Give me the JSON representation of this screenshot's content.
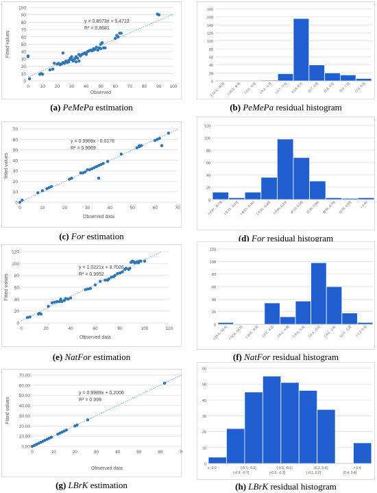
{
  "colors": {
    "point": "#2e75b6",
    "bar": "#1f5fd0",
    "bar_edge": "#ffffff",
    "trend": "#5b9bd5",
    "grid": "#d9d9d9",
    "axis_text": "#595959"
  },
  "captions": [
    {
      "label": "(a)",
      "name": "PeMePa",
      "suffix": " estimation"
    },
    {
      "label": "(b)",
      "name": "PeMePa",
      "suffix": " residual histogram"
    },
    {
      "label": "(c)",
      "name": "For",
      "suffix": " estimation"
    },
    {
      "label": "(d)",
      "name": "For",
      "suffix": " residual histogram"
    },
    {
      "label": "(e)",
      "name": "NatFor",
      "suffix": " estimation"
    },
    {
      "label": "(f)",
      "name": "NatFor",
      "suffix": " residual histogram"
    },
    {
      "label": "(g)",
      "name": "LBrK",
      "suffix": " estimation"
    },
    {
      "label": "(h)",
      "name": "LBrK",
      "suffix": " residual histogram"
    }
  ],
  "chart_data": [
    {
      "type": "scatter",
      "xlabel": "Observed",
      "ylabel": "Fitted values",
      "equation": "y = 0.8573x + 5.4712",
      "r2": "R² = 0.8681",
      "xlim": [
        0,
        100
      ],
      "ylim": [
        0,
        100
      ],
      "xticks": [
        "0",
        "10",
        "20",
        "30",
        "40",
        "50",
        "60",
        "70",
        "80",
        "90",
        "100"
      ],
      "yticks": [
        "0",
        "10",
        "20",
        "30",
        "40",
        "50",
        "60",
        "70",
        "80",
        "90",
        "100"
      ],
      "trend": {
        "slope": 0.8573,
        "intercept": 5.4712
      },
      "points": [
        [
          0,
          33
        ],
        [
          0,
          34
        ],
        [
          1,
          3
        ],
        [
          8,
          9
        ],
        [
          9,
          10
        ],
        [
          10,
          9
        ],
        [
          15,
          15
        ],
        [
          17,
          16
        ],
        [
          18,
          24
        ],
        [
          20,
          23
        ],
        [
          21,
          24
        ],
        [
          22,
          22
        ],
        [
          23,
          23
        ],
        [
          24,
          25
        ],
        [
          24,
          38
        ],
        [
          25,
          24
        ],
        [
          26,
          27
        ],
        [
          27,
          25
        ],
        [
          28,
          26
        ],
        [
          28,
          28
        ],
        [
          29,
          31
        ],
        [
          30,
          29
        ],
        [
          30,
          33
        ],
        [
          31,
          27
        ],
        [
          32,
          30
        ],
        [
          33,
          26
        ],
        [
          33,
          33
        ],
        [
          34,
          31
        ],
        [
          35,
          36
        ],
        [
          35,
          27
        ],
        [
          36,
          34
        ],
        [
          37,
          36
        ],
        [
          38,
          37
        ],
        [
          39,
          38
        ],
        [
          40,
          36
        ],
        [
          40,
          38
        ],
        [
          41,
          40
        ],
        [
          42,
          41
        ],
        [
          43,
          42
        ],
        [
          44,
          41
        ],
        [
          45,
          44
        ],
        [
          45,
          42
        ],
        [
          46,
          43
        ],
        [
          47,
          46
        ],
        [
          48,
          42
        ],
        [
          49,
          45
        ],
        [
          50,
          50
        ],
        [
          50,
          44
        ],
        [
          51,
          52
        ],
        [
          52,
          45
        ],
        [
          53,
          45
        ],
        [
          60,
          58
        ],
        [
          61,
          62
        ],
        [
          62,
          60
        ],
        [
          63,
          65
        ],
        [
          64,
          65
        ],
        [
          89,
          91
        ],
        [
          90,
          90
        ]
      ]
    },
    {
      "type": "bar",
      "categories": [
        "(-12.3, -10.1]",
        "(-10.1, -8.0]",
        "(-8.0, -5.8]",
        "(-5.8, -3.7]",
        "(-3.7, -1.5]",
        "(-1.5, 0.7]",
        "(0.7, 2.8]",
        "(2.8, 5.0]",
        "(5.0, 7.2]",
        "(7.2, 9.3]"
      ],
      "values": [
        0,
        0,
        0,
        2,
        18,
        156,
        40,
        20,
        15,
        6
      ],
      "ylim": [
        0,
        180
      ],
      "yticks": [
        "0",
        "20",
        "40",
        "60",
        "80",
        "100",
        "120",
        "140",
        "160",
        "180"
      ]
    },
    {
      "type": "scatter",
      "xlabel": "Observed data",
      "ylabel": "fitted values",
      "equation": "y = 0.9969x - 0.0176",
      "r2": "R² = 0.9969",
      "xlim": [
        0,
        70
      ],
      "ylim": [
        0,
        70
      ],
      "xticks": [
        "0",
        "10",
        "20",
        "30",
        "40",
        "50",
        "60",
        "70"
      ],
      "yticks": [
        "0",
        "10",
        "20",
        "30",
        "40",
        "50",
        "60",
        "70"
      ],
      "trend": {
        "slope": 0.9969,
        "intercept": -0.0176
      },
      "points": [
        [
          0,
          0
        ],
        [
          1,
          2
        ],
        [
          8,
          9
        ],
        [
          10,
          11
        ],
        [
          12,
          13
        ],
        [
          13,
          14
        ],
        [
          14,
          15
        ],
        [
          22,
          22
        ],
        [
          23,
          23
        ],
        [
          27,
          28
        ],
        [
          28,
          28
        ],
        [
          29,
          29
        ],
        [
          30,
          31
        ],
        [
          31,
          31
        ],
        [
          32,
          32
        ],
        [
          33,
          33
        ],
        [
          34,
          34
        ],
        [
          35,
          23
        ],
        [
          35,
          35
        ],
        [
          36,
          36
        ],
        [
          37,
          37
        ],
        [
          39,
          39
        ],
        [
          45,
          46
        ],
        [
          52,
          52
        ],
        [
          53,
          53
        ],
        [
          53,
          54
        ],
        [
          54,
          54
        ],
        [
          60,
          59
        ],
        [
          61,
          60
        ],
        [
          62,
          61
        ],
        [
          63,
          54
        ],
        [
          66,
          66
        ]
      ]
    },
    {
      "type": "bar",
      "categories": [
        "(-0.97, -0.75]",
        "(-0.75, -0.53]",
        "(-0.53, -0.31]",
        "(-0.31, -0.09]",
        "(-0.09, 0.13]",
        "(0.13, 0.34]",
        "(0.34, 0.56]",
        "(0.56, 0.78]",
        "(0.78, 1.00]",
        "> 1.00"
      ],
      "values": [
        12,
        3,
        12,
        36,
        98,
        68,
        30,
        3,
        2,
        3
      ],
      "ylim": [
        0,
        120
      ],
      "yticks": [
        "0",
        "20",
        "40",
        "60",
        "80",
        "100",
        "120"
      ]
    },
    {
      "type": "scatter",
      "xlabel": "Observed data",
      "ylabel": "Fitted values",
      "equation": "y = 1.0221x + 3.7026",
      "r2": "R² = 0.9952",
      "xlim": [
        0,
        120
      ],
      "ylim": [
        0,
        120
      ],
      "xticks": [
        "0",
        "20",
        "40",
        "60",
        "80",
        "100",
        "120"
      ],
      "yticks": [
        "0",
        "20",
        "40",
        "60",
        "80",
        "100",
        "120"
      ],
      "trend": {
        "slope": 1.0221,
        "intercept": 3.7026
      },
      "points": [
        [
          5,
          9
        ],
        [
          7,
          10
        ],
        [
          14,
          15
        ],
        [
          15,
          16
        ],
        [
          16,
          15
        ],
        [
          22,
          28
        ],
        [
          25,
          34
        ],
        [
          27,
          35
        ],
        [
          29,
          36
        ],
        [
          31,
          36
        ],
        [
          32,
          40
        ],
        [
          33,
          36
        ],
        [
          35,
          38
        ],
        [
          36,
          41
        ],
        [
          38,
          40
        ],
        [
          40,
          42
        ],
        [
          52,
          56
        ],
        [
          54,
          57
        ],
        [
          56,
          58
        ],
        [
          60,
          64
        ],
        [
          64,
          70
        ],
        [
          68,
          72
        ],
        [
          70,
          72
        ],
        [
          71,
          74
        ],
        [
          73,
          77
        ],
        [
          75,
          78
        ],
        [
          76,
          80
        ],
        [
          78,
          83
        ],
        [
          80,
          84
        ],
        [
          82,
          86
        ],
        [
          84,
          90
        ],
        [
          85,
          92
        ],
        [
          87,
          90
        ],
        [
          88,
          92
        ],
        [
          89,
          102
        ],
        [
          90,
          104
        ],
        [
          91,
          103
        ],
        [
          92,
          101
        ],
        [
          93,
          102
        ],
        [
          94,
          103
        ],
        [
          95,
          101
        ],
        [
          96,
          104
        ],
        [
          97,
          104
        ],
        [
          100,
          104
        ]
      ]
    },
    {
      "type": "bar",
      "categories": [
        "(-13.8, -12.4]",
        "(-12.4, -11.0]",
        "(-11.0, -9.6]",
        "(-9.6, -8.2]",
        "(-8.2, -6.8]",
        "(-6.8, -5.4]",
        "(-5.4, -4.0]",
        "(-4.0, -2.6]",
        "(-2.6, -1.2]",
        "(-1.2, 0.3]"
      ],
      "values": [
        3,
        0,
        0,
        34,
        12,
        37,
        98,
        60,
        18,
        3
      ],
      "ylim": [
        0,
        120
      ],
      "yticks": [
        "0",
        "20",
        "40",
        "60",
        "80",
        "100",
        "120"
      ]
    },
    {
      "type": "scatter",
      "xlabel": "Observed data",
      "ylabel": "Fitted values",
      "equation": "y = 0.9989x + 0.2006",
      "r2": "R² = 0.999",
      "xlim": [
        0,
        70
      ],
      "ylim": [
        0,
        70
      ],
      "xticks": [
        "0",
        "10",
        "20",
        "30",
        "40",
        "50",
        "60",
        "70"
      ],
      "yticks": [
        "0.00",
        "10.00",
        "20.00",
        "30.00",
        "40.00",
        "50.00",
        "60.00",
        "70.00"
      ],
      "trend": {
        "slope": 0.9989,
        "intercept": 0.2006
      },
      "points": [
        [
          0,
          0
        ],
        [
          1,
          1
        ],
        [
          2,
          2
        ],
        [
          3,
          3
        ],
        [
          4,
          4
        ],
        [
          5,
          5
        ],
        [
          6,
          6
        ],
        [
          7,
          7
        ],
        [
          8,
          8
        ],
        [
          9,
          9
        ],
        [
          12,
          12
        ],
        [
          13,
          13
        ],
        [
          14,
          14
        ],
        [
          15,
          15
        ],
        [
          16,
          16
        ],
        [
          20,
          20
        ],
        [
          21,
          21
        ],
        [
          26,
          26
        ],
        [
          62,
          62
        ]
      ]
    },
    {
      "type": "bar",
      "categories": [
        "≤ -0.9",
        "(-0.9, -0.7]",
        "(-0.7, -0.5]",
        "(-0.5, -0.3]",
        "(-0.3, -0.1]",
        "(-0.1, 0.2]",
        "(0.2, 0.4]",
        "(0.4, 0.4]",
        "> 0.4"
      ],
      "values": [
        4,
        22,
        45,
        55,
        51,
        46,
        34,
        0,
        13
      ],
      "ylim": [
        0,
        60
      ],
      "yticks": [
        "0",
        "10",
        "20",
        "30",
        "40",
        "50",
        "60"
      ]
    }
  ]
}
